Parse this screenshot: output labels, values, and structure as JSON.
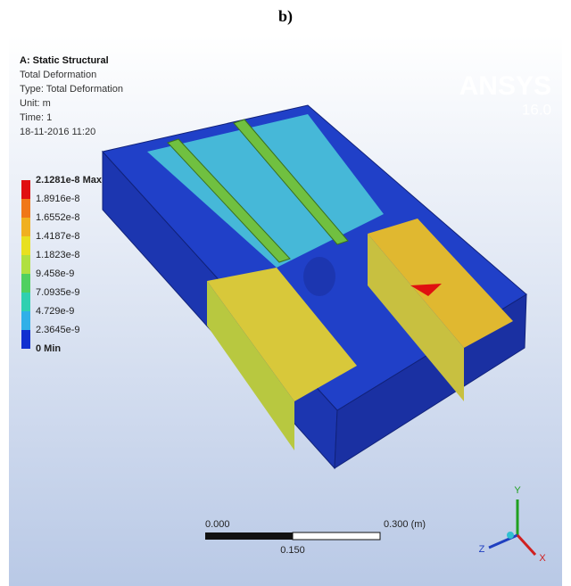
{
  "figure_label": "b)",
  "header": {
    "title": "A: Static Structural",
    "lines": [
      "Total Deformation",
      "Type: Total Deformation",
      "Unit: m",
      "Time: 1",
      "18-11-2016 11:20"
    ]
  },
  "legend": {
    "labels": [
      "2.1281e-8 Max",
      "1.8916e-8",
      "1.6552e-8",
      "1.4187e-8",
      "1.1823e-8",
      "9.458e-9",
      "7.0935e-9",
      "4.729e-9",
      "2.3645e-9",
      "0 Min"
    ]
  },
  "logo": {
    "name": "ANSYS",
    "version": "16.0"
  },
  "scale_bar": {
    "start": "0.000",
    "end": "0.300 (m)",
    "mid": "0.150"
  },
  "triad": {
    "y": "Y",
    "z": "Z",
    "x": "X"
  }
}
